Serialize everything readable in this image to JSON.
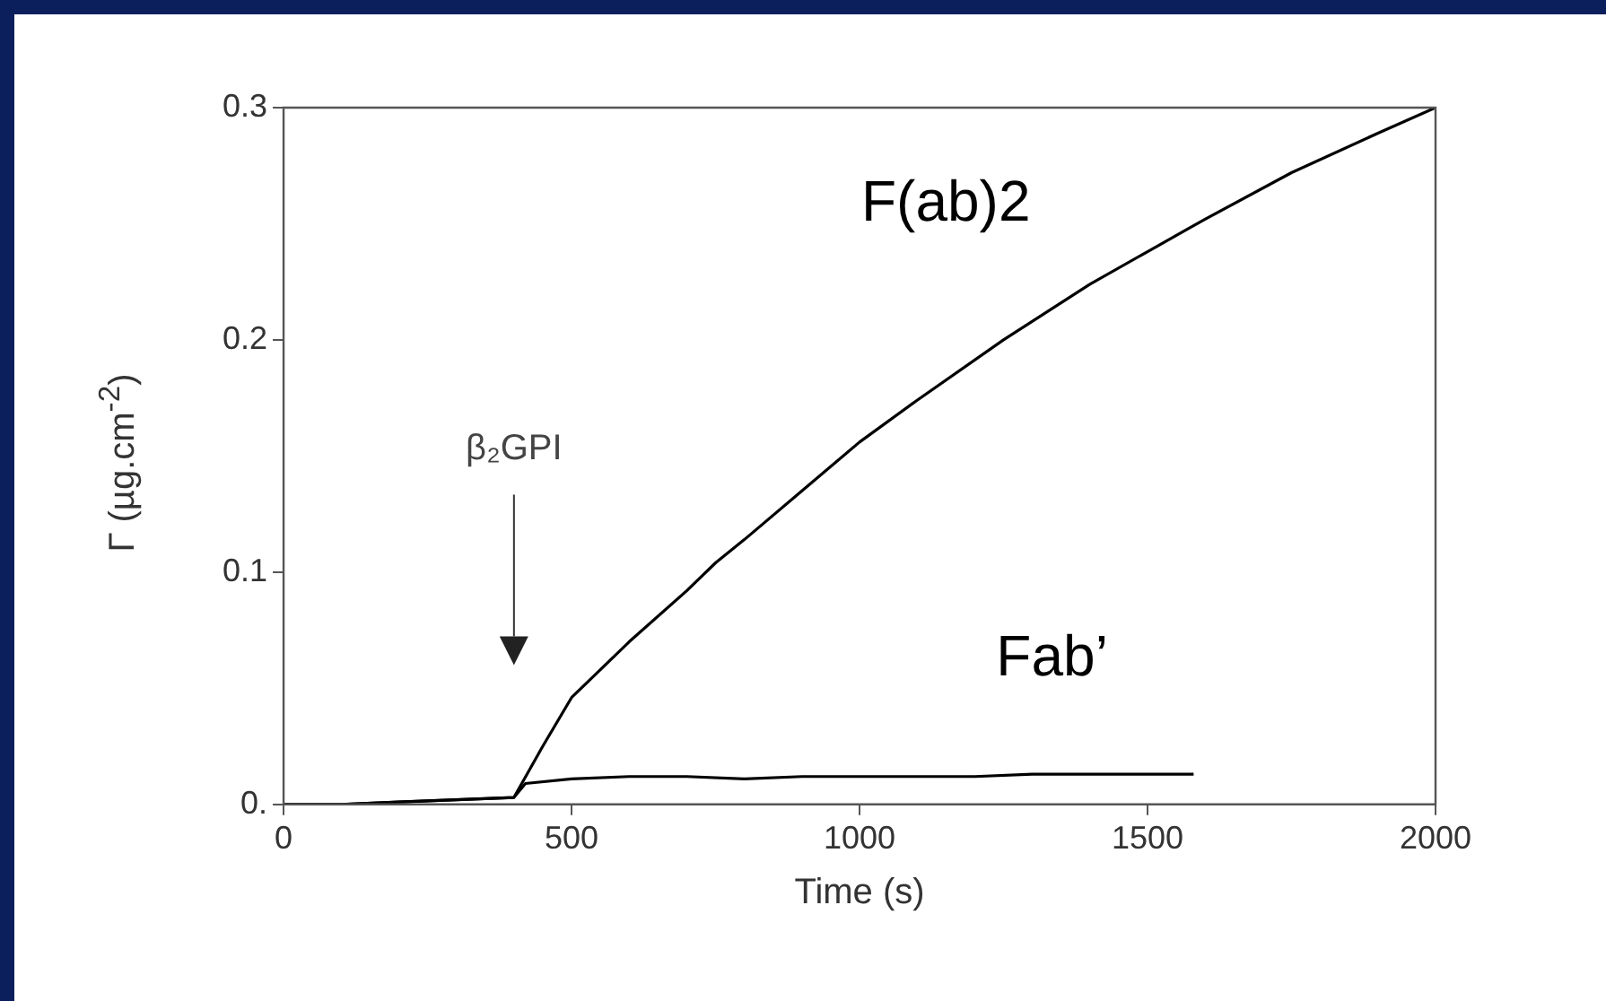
{
  "chart_data": {
    "type": "line",
    "xlabel": "Time (s)",
    "ylabel": "Γ (µg.cm$^{-2}$)",
    "xlim": [
      0,
      2000
    ],
    "xticks": [
      0,
      500,
      1000,
      1500,
      2000
    ],
    "ylim": [
      0,
      0.3
    ],
    "yticks": [
      {
        "value": 0,
        "label": "0."
      },
      0.1,
      0.2,
      0.3
    ],
    "grid": false,
    "legend": false,
    "marker": "none",
    "line_style": "solid",
    "annotations": [
      "β₂GPI"
    ],
    "series": [
      {
        "name": "F(ab)2",
        "color": "#000000",
        "x": [
          0,
          100,
          200,
          300,
          400,
          450,
          500,
          600,
          700,
          750,
          800,
          900,
          1000,
          1100,
          1250,
          1400,
          1500,
          1600,
          1750,
          1900,
          2000
        ],
        "values": [
          0,
          0,
          0.001,
          0.002,
          0.003,
          0.025,
          0.046,
          0.07,
          0.092,
          0.104,
          0.114,
          0.135,
          0.156,
          0.174,
          0.2,
          0.224,
          0.238,
          0.252,
          0.272,
          0.289,
          0.3
        ]
      },
      {
        "name": "Fab’",
        "color": "#000000",
        "x": [
          0,
          100,
          200,
          300,
          400,
          420,
          500,
          600,
          700,
          800,
          900,
          1000,
          1100,
          1200,
          1300,
          1400,
          1500,
          1580
        ],
        "values": [
          0,
          0,
          0.001,
          0.002,
          0.003,
          0.009,
          0.011,
          0.012,
          0.012,
          0.011,
          0.012,
          0.012,
          0.012,
          0.012,
          0.013,
          0.013,
          0.013,
          0.013
        ]
      }
    ]
  }
}
